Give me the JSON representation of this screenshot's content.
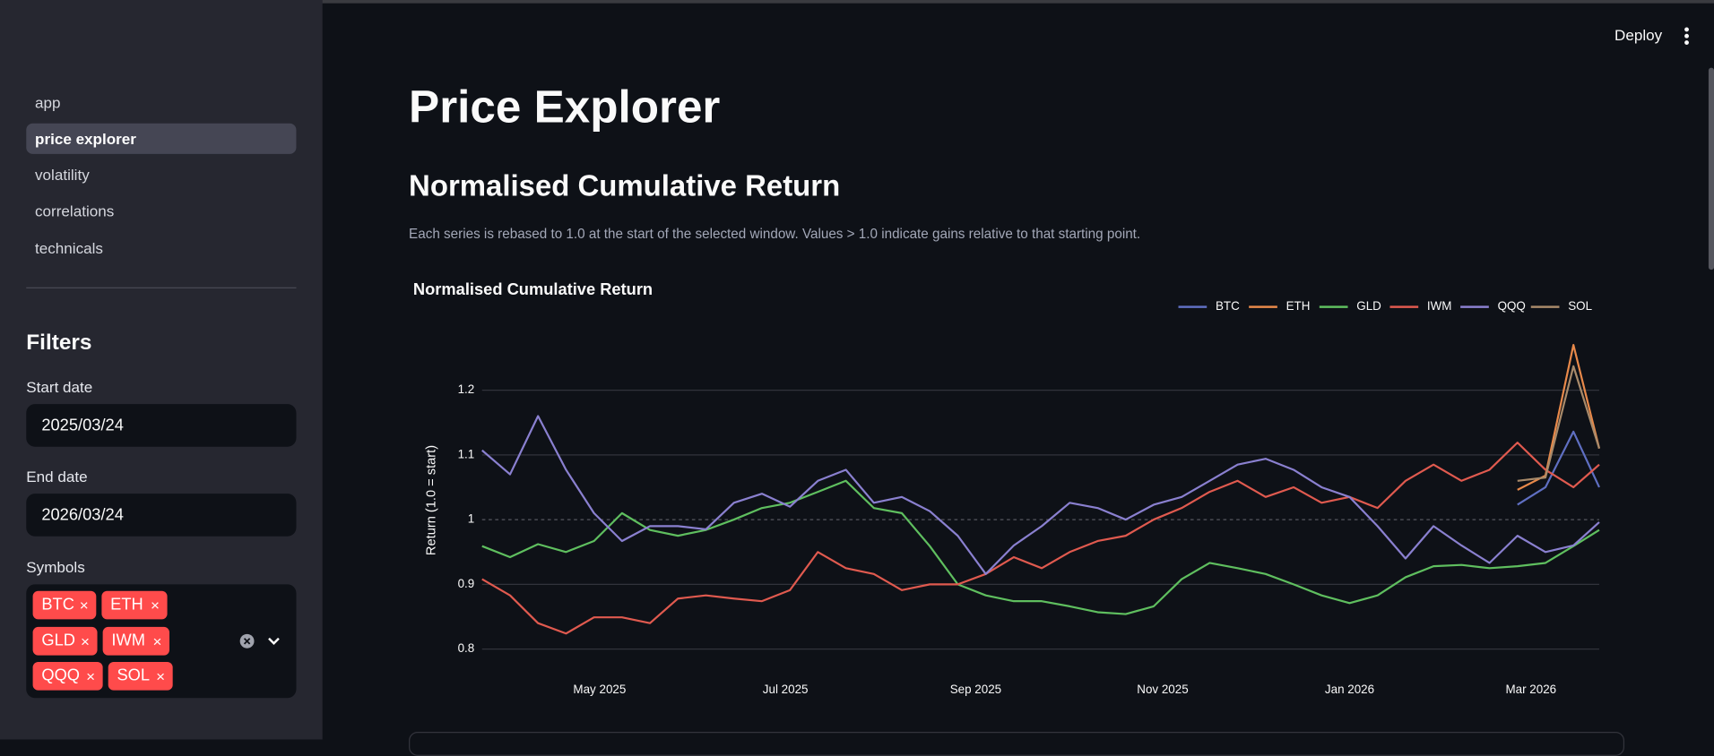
{
  "sidebar": {
    "nav": [
      "app",
      "price explorer",
      "volatility",
      "correlations",
      "technicals"
    ],
    "active": 1,
    "filters": {
      "title": "Filters",
      "start_label": "Start date",
      "start_value": "2025/03/24",
      "end_label": "End date",
      "end_value": "2026/03/24",
      "symbols_label": "Symbols",
      "symbols": [
        "BTC",
        "ETH",
        "GLD",
        "IWM",
        "QQQ",
        "SOL"
      ]
    }
  },
  "header": {
    "deploy": "Deploy"
  },
  "main": {
    "title": "Price Explorer",
    "subtitle": "Normalised Cumulative Return",
    "caption": "Each series is rebased to 1.0 at the start of the selected window. Values > 1.0 indicate gains relative to that starting point."
  },
  "chart_data": {
    "type": "line",
    "title": "Normalised Cumulative Return",
    "y_label": "Return (1.0 = start)",
    "x": [
      2025.225,
      2025.25,
      2025.275,
      2025.3,
      2025.325,
      2025.35,
      2025.375,
      2025.4,
      2025.425,
      2025.45,
      2025.475,
      2025.5,
      2025.525,
      2025.55,
      2025.575,
      2025.6,
      2025.625,
      2025.65,
      2025.675,
      2025.7,
      2025.725,
      2025.75,
      2025.775,
      2025.8,
      2025.825,
      2025.85,
      2025.875,
      2025.9,
      2025.925,
      2025.95,
      2025.975,
      2026.0,
      2026.025,
      2026.05,
      2026.075,
      2026.1,
      2026.125,
      2026.15,
      2026.175,
      2026.2,
      2026.223
    ],
    "xlim": [
      2025.225,
      2026.223
    ],
    "xticks": [
      {
        "value": 2025.33,
        "label": "May 2025"
      },
      {
        "value": 2025.496,
        "label": "Jul 2025"
      },
      {
        "value": 2025.666,
        "label": "Sep 2025"
      },
      {
        "value": 2025.833,
        "label": "Nov 2025"
      },
      {
        "value": 2026.0,
        "label": "Jan 2026"
      },
      {
        "value": 2026.162,
        "label": "Mar 2026"
      }
    ],
    "ylim": [
      0.77,
      1.3
    ],
    "yticks": [
      0.8,
      0.9,
      1,
      1.1,
      1.2
    ],
    "grid": true,
    "hline": 1,
    "legend": "top-right",
    "series": [
      {
        "name": "BTC",
        "color": "#5f6fc2",
        "values": [
          null,
          null,
          null,
          null,
          null,
          null,
          null,
          null,
          null,
          null,
          null,
          null,
          null,
          null,
          null,
          null,
          null,
          null,
          null,
          null,
          null,
          null,
          null,
          null,
          null,
          null,
          null,
          null,
          null,
          null,
          null,
          null,
          null,
          null,
          null,
          null,
          null,
          1.023,
          1.05,
          1.136,
          1.05
        ]
      },
      {
        "name": "ETH",
        "color": "#e8894a",
        "values": [
          null,
          null,
          null,
          null,
          null,
          null,
          null,
          null,
          null,
          null,
          null,
          null,
          null,
          null,
          null,
          null,
          null,
          null,
          null,
          null,
          null,
          null,
          null,
          null,
          null,
          null,
          null,
          null,
          null,
          null,
          null,
          null,
          null,
          null,
          null,
          null,
          null,
          1.046,
          1.068,
          1.27,
          1.11
        ]
      },
      {
        "name": "GLD",
        "color": "#5fbf5f",
        "values": [
          0.959,
          0.942,
          0.962,
          0.95,
          0.967,
          1.01,
          0.984,
          0.975,
          0.984,
          1.0,
          1.018,
          1.026,
          1.043,
          1.06,
          1.018,
          1.01,
          0.959,
          0.9,
          0.883,
          0.874,
          0.874,
          0.866,
          0.857,
          0.854,
          0.866,
          0.908,
          0.933,
          0.925,
          0.916,
          0.9,
          0.883,
          0.871,
          0.883,
          0.911,
          0.928,
          0.93,
          0.925,
          0.928,
          0.933,
          0.959,
          0.984
        ]
      },
      {
        "name": "IWM",
        "color": "#e05a4f",
        "values": [
          0.908,
          0.883,
          0.84,
          0.824,
          0.849,
          0.849,
          0.84,
          0.878,
          0.883,
          0.878,
          0.874,
          0.891,
          0.95,
          0.925,
          0.916,
          0.891,
          0.9,
          0.9,
          0.916,
          0.942,
          0.925,
          0.95,
          0.967,
          0.975,
          1.0,
          1.018,
          1.043,
          1.06,
          1.035,
          1.05,
          1.026,
          1.035,
          1.018,
          1.06,
          1.085,
          1.06,
          1.077,
          1.119,
          1.077,
          1.05,
          1.085
        ]
      },
      {
        "name": "QQQ",
        "color": "#8a80d0",
        "values": [
          1.107,
          1.07,
          1.16,
          1.077,
          1.01,
          0.967,
          0.99,
          0.99,
          0.985,
          1.026,
          1.04,
          1.02,
          1.06,
          1.077,
          1.026,
          1.035,
          1.013,
          0.975,
          0.916,
          0.96,
          0.99,
          1.026,
          1.018,
          1.0,
          1.023,
          1.035,
          1.06,
          1.085,
          1.094,
          1.077,
          1.05,
          1.035,
          0.99,
          0.94,
          0.99,
          0.96,
          0.933,
          0.975,
          0.95,
          0.96,
          0.996
        ]
      },
      {
        "name": "SOL",
        "color": "#a88a6a",
        "values": [
          null,
          null,
          null,
          null,
          null,
          null,
          null,
          null,
          null,
          null,
          null,
          null,
          null,
          null,
          null,
          null,
          null,
          null,
          null,
          null,
          null,
          null,
          null,
          null,
          null,
          null,
          null,
          null,
          null,
          null,
          null,
          null,
          null,
          null,
          null,
          null,
          null,
          1.06,
          1.065,
          1.237,
          1.11
        ]
      }
    ]
  }
}
